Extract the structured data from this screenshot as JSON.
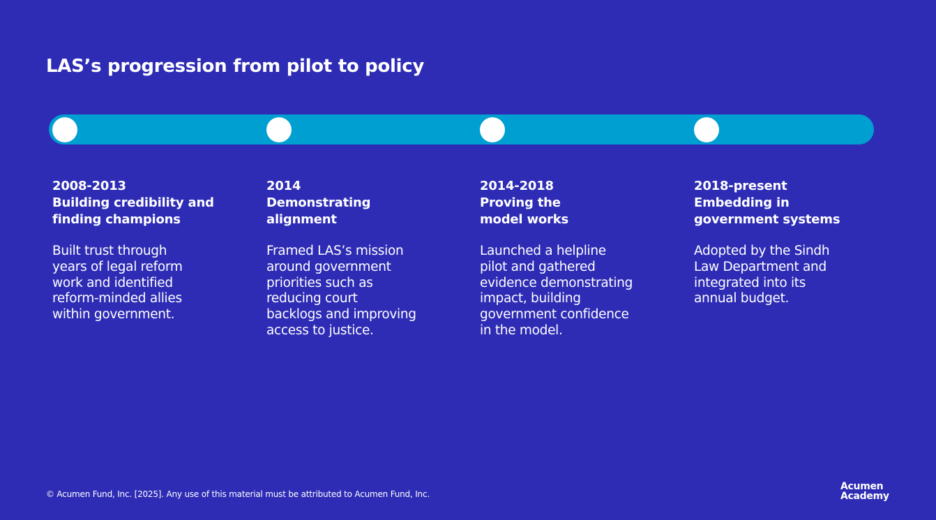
{
  "title": "LAS’s progression from pilot to policy",
  "colors": {
    "background": "#2e2cb5",
    "timeline": "#009fd2",
    "dot": "#ffffff"
  },
  "stages": [
    {
      "period": "2008-2013",
      "heading": "Building credibility and\nfinding champions",
      "description": "Built trust through\nyears of legal reform\nwork and identified\nreform-minded allies\nwithin government."
    },
    {
      "period": "2014",
      "heading": "Demonstrating\nalignment",
      "description": "Framed LAS’s mission\naround government\npriorities such as\nreducing court\nbacklogs and improving\naccess to justice."
    },
    {
      "period": "2014-2018",
      "heading": "Proving the\nmodel works",
      "description": "Launched a helpline\npilot and gathered\nevidence demonstrating\nimpact, building\ngovernment confidence\nin the model."
    },
    {
      "period": "2018-present",
      "heading": "Embedding in\ngovernment systems",
      "description": "Adopted by the Sindh\nLaw Department and\nintegrated into its\nannual budget."
    }
  ],
  "footer": "© Acumen Fund, Inc. [2025]. Any use of this material must be attributed to Acumen Fund, Inc.",
  "logo": "Acumen\nAcademy"
}
